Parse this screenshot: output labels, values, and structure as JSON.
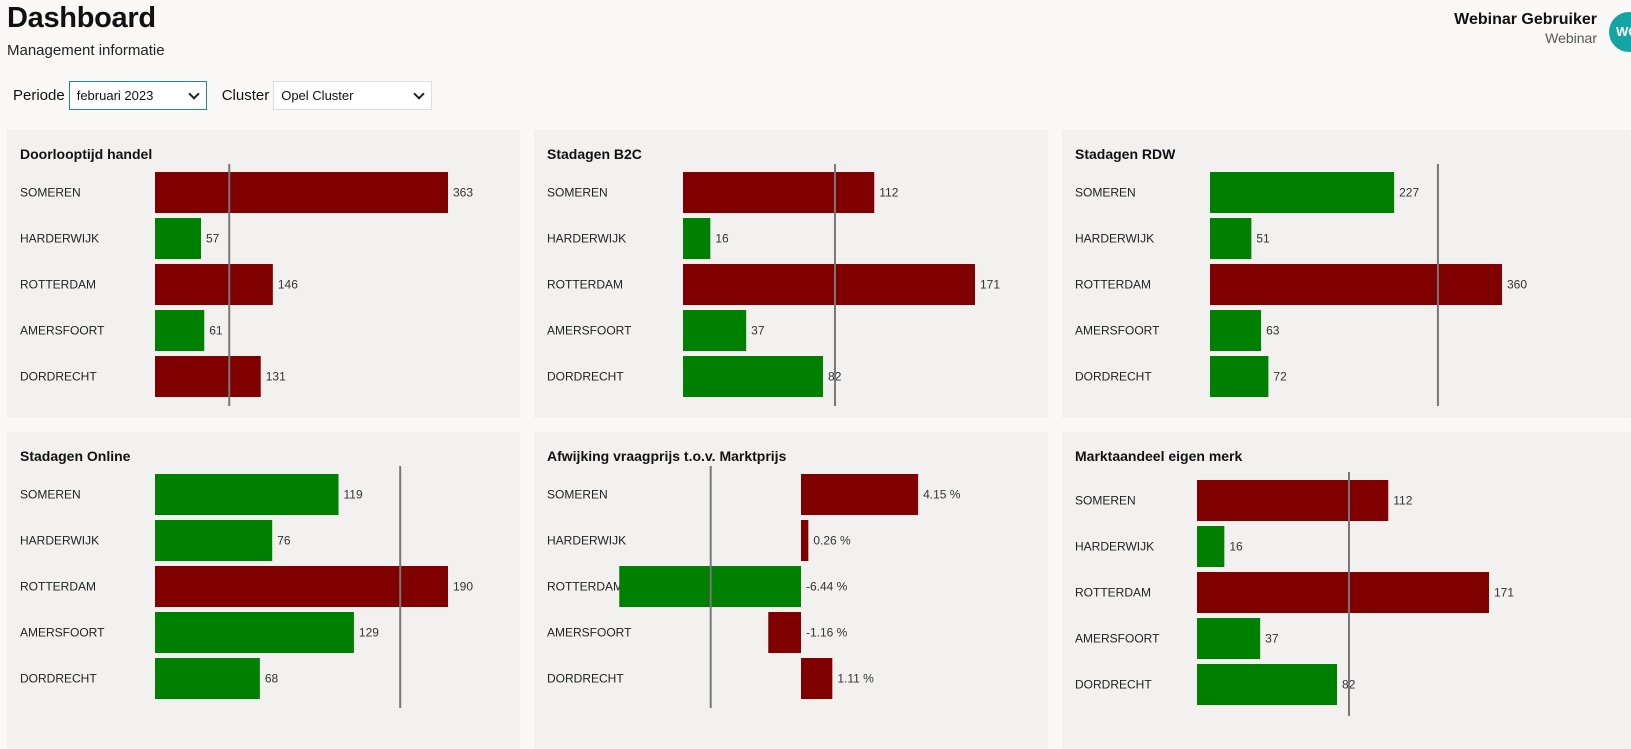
{
  "header": {
    "title": "Dashboard",
    "subtitle": "Management informatie",
    "user_name": "Webinar Gebruiker",
    "user_role": "Webinar",
    "avatar_initials": "WG"
  },
  "filters": {
    "periode_label": "Periode",
    "periode_value": "februari 2023",
    "cluster_label": "Cluster",
    "cluster_value": "Opel Cluster"
  },
  "colors": {
    "above_norm": "#800000",
    "below_norm": "#008000",
    "norm_line": "#777777"
  },
  "chart_data": [
    {
      "type": "bar",
      "title": "Doorlooptijd handel",
      "categories": [
        "SOMEREN",
        "HARDERWIJK",
        "ROTTERDAM",
        "AMERSFOORT",
        "DORDRECHT"
      ],
      "values": [
        363,
        57,
        146,
        61,
        131
      ],
      "value_labels": [
        "363",
        "57",
        "146",
        "61",
        "131"
      ],
      "colors": [
        "#800000",
        "#008000",
        "#800000",
        "#008000",
        "#800000"
      ],
      "reference": 92,
      "xlim": [
        0,
        363
      ]
    },
    {
      "type": "bar",
      "title": "Stadagen B2C",
      "categories": [
        "SOMEREN",
        "HARDERWIJK",
        "ROTTERDAM",
        "AMERSFOORT",
        "DORDRECHT"
      ],
      "values": [
        112,
        16,
        171,
        37,
        82
      ],
      "value_labels": [
        "112",
        "16",
        "171",
        "37",
        "82"
      ],
      "colors": [
        "#800000",
        "#008000",
        "#800000",
        "#008000",
        "#008000"
      ],
      "reference": 89,
      "xlim": [
        0,
        171
      ]
    },
    {
      "type": "bar",
      "title": "Stadagen RDW",
      "categories": [
        "SOMEREN",
        "HARDERWIJK",
        "ROTTERDAM",
        "AMERSFOORT",
        "DORDRECHT"
      ],
      "values": [
        227,
        51,
        360,
        63,
        72
      ],
      "value_labels": [
        "227",
        "51",
        "360",
        "63",
        "72"
      ],
      "colors": [
        "#008000",
        "#008000",
        "#800000",
        "#008000",
        "#008000"
      ],
      "reference": 281,
      "xlim": [
        0,
        360
      ]
    },
    {
      "type": "bar",
      "title": "Stadagen Online",
      "categories": [
        "SOMEREN",
        "HARDERWIJK",
        "ROTTERDAM",
        "AMERSFOORT",
        "DORDRECHT"
      ],
      "values": [
        119,
        76,
        190,
        129,
        68
      ],
      "value_labels": [
        "119",
        "76",
        "190",
        "129",
        "68"
      ],
      "colors": [
        "#008000",
        "#008000",
        "#800000",
        "#008000",
        "#008000"
      ],
      "reference": 159,
      "xlim": [
        0,
        190
      ]
    },
    {
      "type": "bar",
      "title": "Afwijking vraagprijs t.o.v. Marktprijs",
      "categories": [
        "SOMEREN",
        "HARDERWIJK",
        "ROTTERDAM",
        "AMERSFOORT",
        "DORDRECHT"
      ],
      "values": [
        4.15,
        0.26,
        -6.44,
        -1.16,
        1.11
      ],
      "value_labels": [
        "4.15 %",
        "0.26 %",
        "-6.44 %",
        "-1.16 %",
        "1.11 %"
      ],
      "colors": [
        "#800000",
        "#800000",
        "#008000",
        "#800000",
        "#800000"
      ],
      "reference": -3.2
    },
    {
      "type": "bar",
      "title": "Marktaandeel eigen merk",
      "categories": [
        "SOMEREN",
        "HARDERWIJK",
        "ROTTERDAM",
        "AMERSFOORT",
        "DORDRECHT"
      ],
      "values": [
        112,
        16,
        171,
        37,
        82
      ],
      "value_labels": [
        "112",
        "16",
        "171",
        "37",
        "82"
      ],
      "colors": [
        "#800000",
        "#008000",
        "#800000",
        "#008000",
        "#008000"
      ],
      "reference": 89,
      "xlim": [
        0,
        171
      ]
    }
  ]
}
